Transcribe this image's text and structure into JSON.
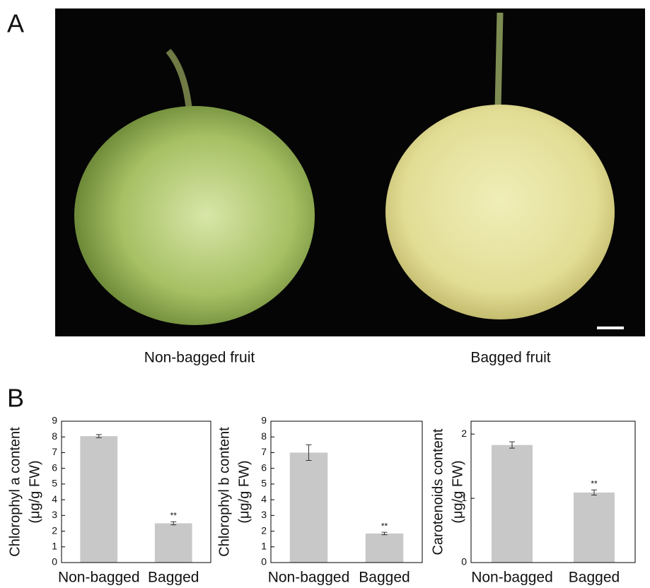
{
  "figure": {
    "panel_a_label": "A",
    "panel_b_label": "B",
    "captions": [
      "Non-bagged fruit",
      "Bagged fruit"
    ]
  },
  "chart_data": [
    {
      "type": "bar",
      "ylabel": [
        "Chlorophyl a content",
        "(μg/g FW)"
      ],
      "categories": [
        "Non-bagged",
        "Bagged"
      ],
      "values": [
        8.05,
        2.5
      ],
      "errors": [
        0.1,
        0.1
      ],
      "significance": [
        null,
        "**"
      ],
      "color": "#c8c8c8",
      "ylim": [
        0,
        9
      ],
      "yticks": [
        0,
        1,
        2,
        3,
        4,
        5,
        6,
        7,
        8,
        9
      ]
    },
    {
      "type": "bar",
      "ylabel": [
        "Chlorophyl b content",
        "(μg/g FW)"
      ],
      "categories": [
        "Non-bagged",
        "Bagged"
      ],
      "values": [
        7.0,
        1.85
      ],
      "errors": [
        0.5,
        0.08
      ],
      "significance": [
        null,
        "**"
      ],
      "color": "#c8c8c8",
      "ylim": [
        0,
        9
      ],
      "yticks": [
        0,
        1,
        2,
        3,
        4,
        5,
        6,
        7,
        8,
        9
      ]
    },
    {
      "type": "bar",
      "ylabel": [
        "Carotenoids content",
        "(μg/g FW)"
      ],
      "categories": [
        "Non-bagged",
        "Bagged"
      ],
      "values": [
        1.83,
        1.09
      ],
      "errors": [
        0.05,
        0.04
      ],
      "significance": [
        null,
        "**"
      ],
      "color": "#c8c8c8",
      "ylim": [
        0,
        2.2
      ],
      "yticks": [
        0,
        1,
        2
      ]
    }
  ]
}
